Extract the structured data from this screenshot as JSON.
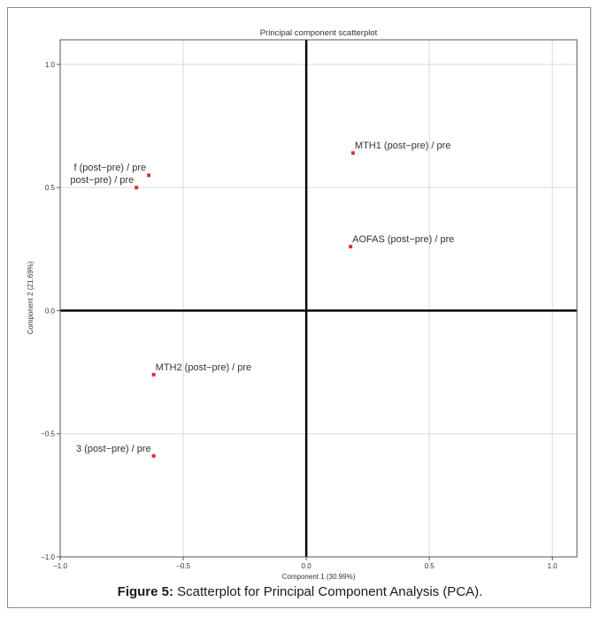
{
  "caption": {
    "label": "Figure 5:",
    "text": " Scatterplot for Principal Component Analysis (PCA)."
  },
  "chart_data": {
    "type": "scatter",
    "title": "Principal component scatterplot",
    "xlabel": "Component 1 (30.99%)",
    "ylabel": "Component 2 (21.69%)",
    "xlim": [
      -1.0,
      1.1
    ],
    "ylim": [
      -1.0,
      1.1
    ],
    "x_ticks": [
      -1.0,
      -0.5,
      0.0,
      0.5,
      1.0
    ],
    "y_ticks": [
      -1.0,
      -0.5,
      0.0,
      0.5,
      1.0
    ],
    "x_tick_labels": [
      "−1.0",
      "−0.5",
      "0.0",
      "0.5",
      "1.0"
    ],
    "y_tick_labels": [
      "−1.0",
      "−0.5",
      "0.0",
      "0.5",
      "1.0"
    ],
    "grid": true,
    "point_color": "#e03030",
    "points": [
      {
        "x": 0.19,
        "y": 0.64,
        "label": "MTH1 (post−pre) / pre"
      },
      {
        "x": 0.18,
        "y": 0.26,
        "label": "AOFAS (post−pre) / pre"
      },
      {
        "x": -0.64,
        "y": 0.55,
        "label": "f (post−pre) / pre"
      },
      {
        "x": -0.69,
        "y": 0.5,
        "label": "post−pre) / pre"
      },
      {
        "x": -0.62,
        "y": -0.26,
        "label": "MTH2 (post−pre) / pre"
      },
      {
        "x": -0.62,
        "y": -0.59,
        "label": "3 (post−pre) / pre"
      }
    ]
  }
}
